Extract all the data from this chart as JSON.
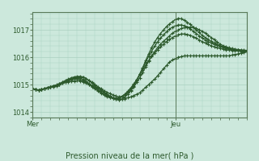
{
  "title": "Pression niveau de la mer( hPa )",
  "xlabel_mer": "Mer",
  "xlabel_jeu": "Jeu",
  "bg_color": "#cce8dc",
  "line_color": "#2d5a2d",
  "grid_color": "#aad0c0",
  "axis_color": "#5a7a5a",
  "ylim": [
    1013.85,
    1017.65
  ],
  "xlim": [
    0,
    72
  ],
  "mer_x": 0,
  "jeu_x": 48,
  "yticks": [
    1014,
    1015,
    1016,
    1017
  ],
  "n_points": 73,
  "series": [
    [
      1014.85,
      1014.82,
      1014.8,
      1014.82,
      1014.85,
      1014.88,
      1014.9,
      1014.92,
      1014.95,
      1015.0,
      1015.05,
      1015.08,
      1015.1,
      1015.12,
      1015.13,
      1015.14,
      1015.13,
      1015.1,
      1015.05,
      1015.0,
      1014.95,
      1014.9,
      1014.85,
      1014.8,
      1014.72,
      1014.65,
      1014.58,
      1014.52,
      1014.48,
      1014.45,
      1014.46,
      1014.48,
      1014.52,
      1014.55,
      1014.6,
      1014.65,
      1014.7,
      1014.8,
      1014.9,
      1015.0,
      1015.1,
      1015.2,
      1015.32,
      1015.45,
      1015.58,
      1015.7,
      1015.82,
      1015.9,
      1015.95,
      1016.0,
      1016.02,
      1016.05,
      1016.05,
      1016.05,
      1016.05,
      1016.05,
      1016.05,
      1016.05,
      1016.05,
      1016.05,
      1016.05,
      1016.05,
      1016.05,
      1016.05,
      1016.05,
      1016.05,
      1016.05,
      1016.08,
      1016.1,
      1016.12,
      1016.15,
      1016.18,
      1016.2
    ],
    [
      1014.85,
      1014.82,
      1014.8,
      1014.82,
      1014.85,
      1014.88,
      1014.92,
      1014.95,
      1014.98,
      1015.03,
      1015.08,
      1015.13,
      1015.18,
      1015.22,
      1015.25,
      1015.27,
      1015.28,
      1015.27,
      1015.22,
      1015.15,
      1015.08,
      1015.0,
      1014.92,
      1014.85,
      1014.78,
      1014.72,
      1014.67,
      1014.62,
      1014.58,
      1014.55,
      1014.57,
      1014.62,
      1014.7,
      1014.8,
      1014.92,
      1015.08,
      1015.25,
      1015.45,
      1015.65,
      1015.85,
      1016.05,
      1016.2,
      1016.35,
      1016.48,
      1016.58,
      1016.68,
      1016.78,
      1016.88,
      1016.95,
      1017.0,
      1017.05,
      1017.08,
      1017.1,
      1017.1,
      1017.08,
      1017.05,
      1017.0,
      1016.95,
      1016.88,
      1016.8,
      1016.72,
      1016.65,
      1016.55,
      1016.48,
      1016.42,
      1016.38,
      1016.35,
      1016.32,
      1016.3,
      1016.28,
      1016.27,
      1016.26,
      1016.25
    ],
    [
      1014.85,
      1014.82,
      1014.8,
      1014.82,
      1014.85,
      1014.88,
      1014.92,
      1014.95,
      1014.99,
      1015.04,
      1015.09,
      1015.15,
      1015.2,
      1015.25,
      1015.28,
      1015.3,
      1015.3,
      1015.28,
      1015.22,
      1015.14,
      1015.05,
      1014.96,
      1014.87,
      1014.78,
      1014.7,
      1014.62,
      1014.55,
      1014.5,
      1014.46,
      1014.44,
      1014.47,
      1014.54,
      1014.65,
      1014.78,
      1014.95,
      1015.15,
      1015.38,
      1015.62,
      1015.88,
      1016.12,
      1016.35,
      1016.55,
      1016.72,
      1016.87,
      1017.0,
      1017.12,
      1017.22,
      1017.3,
      1017.38,
      1017.42,
      1017.4,
      1017.35,
      1017.28,
      1017.2,
      1017.1,
      1017.0,
      1016.9,
      1016.8,
      1016.72,
      1016.65,
      1016.58,
      1016.52,
      1016.47,
      1016.42,
      1016.38,
      1016.35,
      1016.32,
      1016.3,
      1016.28,
      1016.26,
      1016.24,
      1016.22,
      1016.2
    ],
    [
      1014.85,
      1014.82,
      1014.8,
      1014.82,
      1014.85,
      1014.88,
      1014.9,
      1014.93,
      1014.96,
      1015.0,
      1015.05,
      1015.1,
      1015.15,
      1015.18,
      1015.2,
      1015.2,
      1015.18,
      1015.14,
      1015.08,
      1015.0,
      1014.92,
      1014.84,
      1014.76,
      1014.68,
      1014.62,
      1014.56,
      1014.52,
      1014.5,
      1014.5,
      1014.52,
      1014.57,
      1014.65,
      1014.76,
      1014.88,
      1015.02,
      1015.18,
      1015.36,
      1015.54,
      1015.72,
      1015.88,
      1016.02,
      1016.15,
      1016.27,
      1016.38,
      1016.48,
      1016.57,
      1016.65,
      1016.72,
      1016.78,
      1016.82,
      1016.85,
      1016.85,
      1016.83,
      1016.8,
      1016.75,
      1016.7,
      1016.63,
      1016.57,
      1016.52,
      1016.47,
      1016.42,
      1016.38,
      1016.35,
      1016.32,
      1016.3,
      1016.28,
      1016.26,
      1016.25,
      1016.24,
      1016.23,
      1016.22,
      1016.21,
      1016.2
    ],
    [
      1014.85,
      1014.82,
      1014.8,
      1014.82,
      1014.85,
      1014.88,
      1014.91,
      1014.94,
      1014.97,
      1015.01,
      1015.06,
      1015.11,
      1015.17,
      1015.21,
      1015.24,
      1015.25,
      1015.23,
      1015.19,
      1015.12,
      1015.04,
      1014.96,
      1014.88,
      1014.8,
      1014.72,
      1014.65,
      1014.59,
      1014.54,
      1014.51,
      1014.5,
      1014.51,
      1014.55,
      1014.62,
      1014.72,
      1014.85,
      1015.0,
      1015.18,
      1015.38,
      1015.6,
      1015.82,
      1016.03,
      1016.22,
      1016.4,
      1016.56,
      1016.7,
      1016.82,
      1016.93,
      1017.03,
      1017.1,
      1017.15,
      1017.18,
      1017.18,
      1017.15,
      1017.1,
      1017.03,
      1016.95,
      1016.87,
      1016.78,
      1016.7,
      1016.63,
      1016.57,
      1016.52,
      1016.47,
      1016.43,
      1016.39,
      1016.36,
      1016.33,
      1016.31,
      1016.29,
      1016.27,
      1016.26,
      1016.25,
      1016.24,
      1016.23
    ]
  ]
}
